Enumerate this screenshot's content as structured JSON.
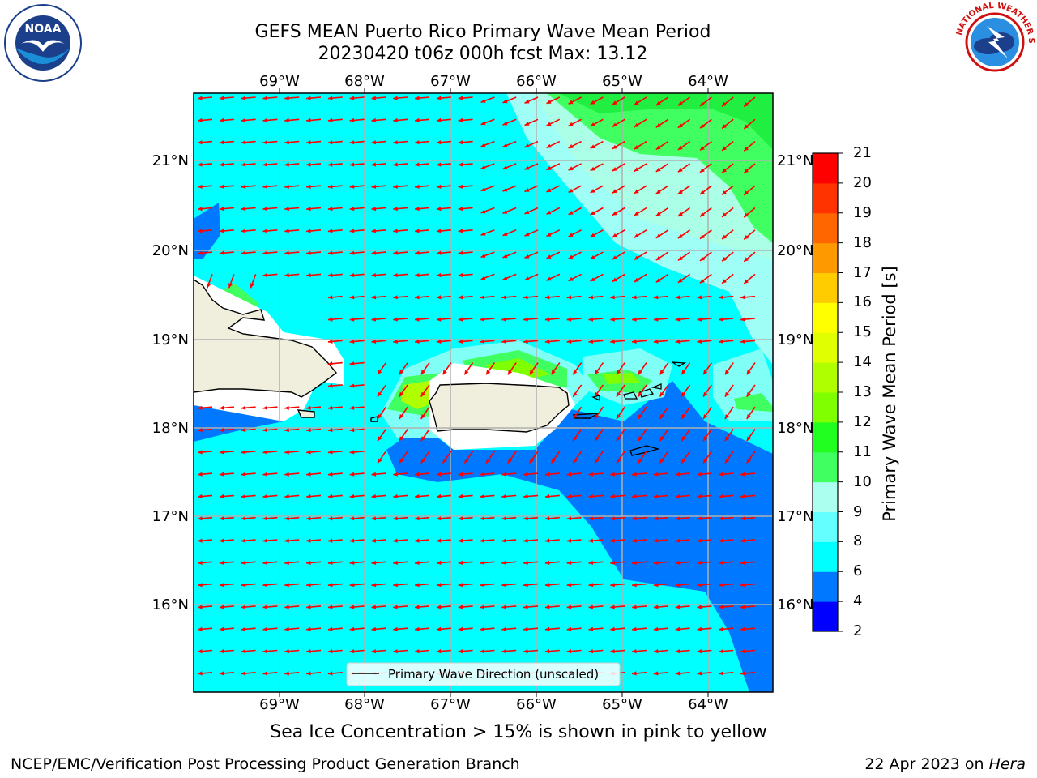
{
  "title": {
    "line1": "GEFS MEAN Puerto Rico Primary Wave Mean Period",
    "line2": "20230420 t06z 000h fcst   Max: 13.12"
  },
  "logos": {
    "left": {
      "name": "NOAA",
      "text": "NOAA",
      "ring": "NATIONAL OCEANIC AND ATMOSPHERIC ADMINISTRATION · U.S. DEPARTMENT OF COMMERCE"
    },
    "right": {
      "name": "National Weather Service",
      "ring": "NATIONAL WEATHER SERVICE"
    }
  },
  "map": {
    "lon_ticks": [
      "69°W",
      "68°W",
      "67°W",
      "66°W",
      "65°W",
      "64°W"
    ],
    "lat_ticks": [
      "21°N",
      "20°N",
      "19°N",
      "18°N",
      "17°N",
      "16°N"
    ],
    "legend": "Primary Wave Direction (unscaled)",
    "arrow_color": "#ff0000",
    "ocean_color": "#00ffff",
    "land_color": "#f0eedc"
  },
  "colorbar": {
    "label": "Primary Wave Mean Period [s]",
    "ticks": [
      "2",
      "4",
      "6",
      "8",
      "9",
      "10",
      "11",
      "12",
      "13",
      "14",
      "15",
      "16",
      "17",
      "18",
      "19",
      "20",
      "21"
    ],
    "colors": [
      "#0000ff",
      "#0078ff",
      "#00ffff",
      "#64ffff",
      "#aaffee",
      "#40ff60",
      "#20ff20",
      "#80ff00",
      "#b0ff00",
      "#e0ff00",
      "#ffff00",
      "#ffcc00",
      "#ff9900",
      "#ff6600",
      "#ff3300",
      "#ff0000"
    ]
  },
  "caption": "Sea Ice Concentration > 15% is shown in pink to yellow",
  "footer": {
    "left": "NCEP/EMC/Verification Post Processing Product Generation Branch",
    "right_prefix": "22 Apr 2023 on ",
    "right_host": "Hera"
  }
}
